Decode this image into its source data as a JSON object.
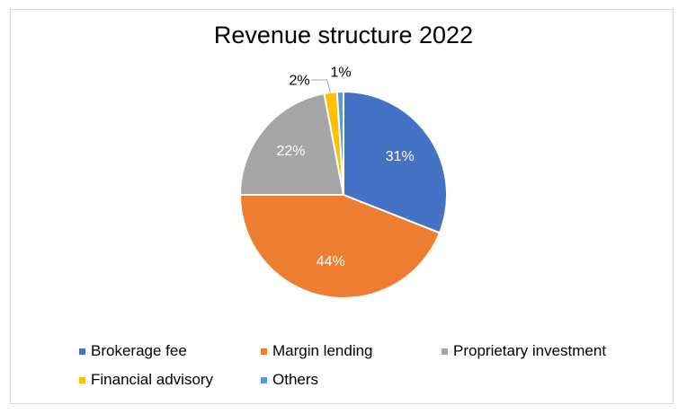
{
  "chart_data": {
    "type": "pie",
    "title": "Revenue structure 2022",
    "categories": [
      "Brokerage fee",
      "Margin lending",
      "Proprietary investment",
      "Financial advisory",
      "Others"
    ],
    "values": [
      31,
      44,
      22,
      2,
      1
    ],
    "labels": [
      "31%",
      "44%",
      "22%",
      "2%",
      "1%"
    ],
    "colors": [
      "#4472c4",
      "#ed7d31",
      "#a5a5a5",
      "#ffc000",
      "#5b9bd5"
    ],
    "legend_position": "bottom"
  }
}
